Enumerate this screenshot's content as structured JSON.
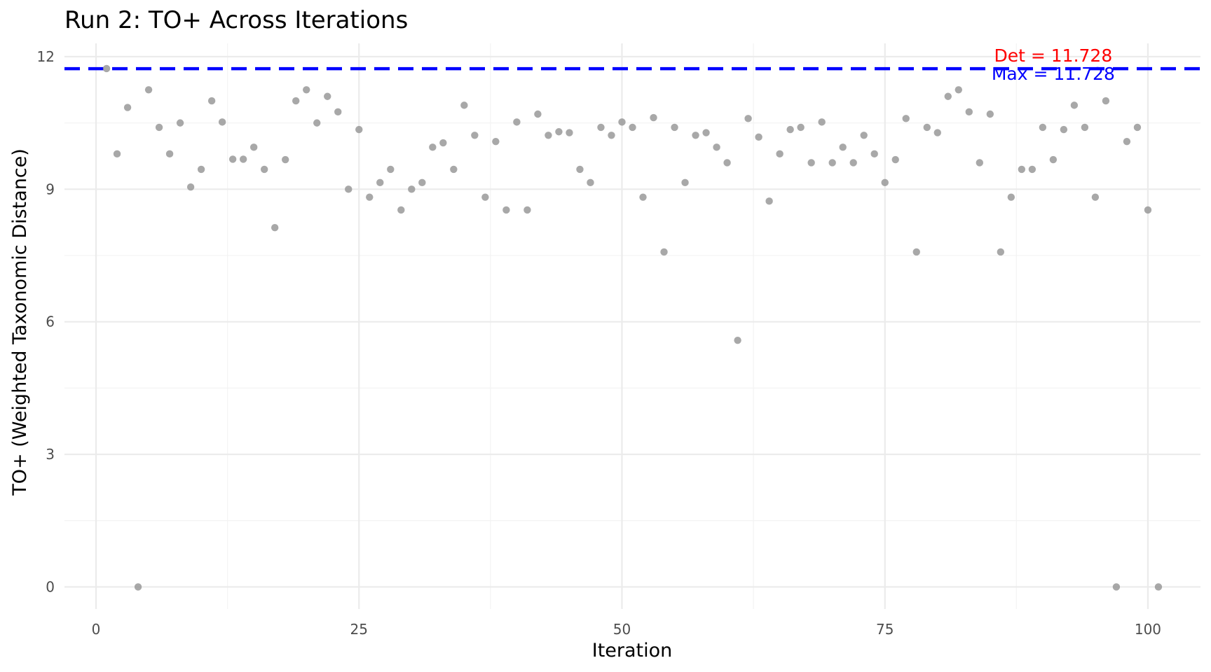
{
  "chart_data": {
    "type": "scatter",
    "title": "Run 2: TO+ Across Iterations",
    "xlabel": "Iteration",
    "ylabel": "TO+ (Weighted Taxonomic Distance)",
    "xlim": [
      -3,
      105
    ],
    "ylim": [
      -0.5,
      12.3
    ],
    "x_ticks": [
      0,
      25,
      50,
      75,
      100
    ],
    "y_ticks": [
      0,
      3,
      6,
      9,
      12
    ],
    "grid": true,
    "legend": "none",
    "point_color": "#999999",
    "reference_lines": [
      {
        "y": 11.728,
        "color": "#0000ff",
        "style": "dashed"
      }
    ],
    "annotations": [
      {
        "text": "Det = 11.728",
        "x": 91,
        "y": 12.03,
        "color": "#ff0000"
      },
      {
        "text": "Max = 11.728",
        "x": 91,
        "y": 11.62,
        "color": "#0000ff"
      }
    ],
    "series": [
      {
        "x": [
          1,
          2,
          3,
          4,
          5,
          6,
          7,
          8,
          9,
          10,
          11,
          12,
          13,
          14,
          15,
          16,
          17,
          18,
          19,
          20,
          21,
          22,
          23,
          24,
          25,
          26,
          27,
          28,
          29,
          30,
          31,
          32,
          33,
          34,
          35,
          36,
          37,
          38,
          39,
          40,
          41,
          42,
          43,
          44,
          45,
          46,
          47,
          48,
          49,
          50,
          51,
          52,
          53,
          54,
          55,
          56,
          57,
          58,
          59,
          60,
          61,
          62,
          63,
          64,
          65,
          66,
          67,
          68,
          69,
          70,
          71,
          72,
          73,
          74,
          75,
          76,
          77,
          78,
          79,
          80,
          81,
          82,
          83,
          84,
          85,
          86,
          87,
          88,
          89,
          90,
          91,
          92,
          93,
          94,
          95,
          96,
          97,
          98,
          99,
          100,
          101
        ],
        "y": [
          11.73,
          9.8,
          10.85,
          0,
          11.25,
          10.4,
          9.8,
          10.5,
          9.05,
          9.45,
          11,
          10.52,
          9.68,
          9.68,
          9.95,
          9.45,
          8.13,
          9.67,
          11,
          11.25,
          10.5,
          11.1,
          10.75,
          9,
          10.35,
          8.82,
          9.15,
          9.45,
          8.53,
          9,
          9.15,
          9.95,
          10.05,
          9.45,
          10.9,
          10.22,
          8.82,
          10.08,
          8.53,
          10.52,
          8.53,
          10.7,
          10.22,
          10.3,
          10.28,
          9.45,
          9.15,
          10.4,
          10.22,
          10.52,
          10.4,
          8.82,
          10.62,
          7.58,
          10.4,
          9.15,
          10.22,
          10.28,
          9.95,
          9.6,
          5.58,
          10.6,
          10.18,
          8.73,
          9.8,
          10.35,
          10.4,
          9.6,
          10.52,
          9.6,
          9.95,
          9.6,
          10.22,
          9.8,
          9.15,
          9.67,
          10.6,
          7.58,
          10.4,
          10.28,
          11.1,
          11.25,
          10.75,
          9.6,
          10.7,
          7.58,
          8.82,
          9.45,
          9.45,
          10.4,
          9.67,
          10.35,
          10.9,
          10.4,
          8.82,
          11,
          0,
          10.08,
          10.4,
          8.53,
          0
        ]
      }
    ]
  }
}
